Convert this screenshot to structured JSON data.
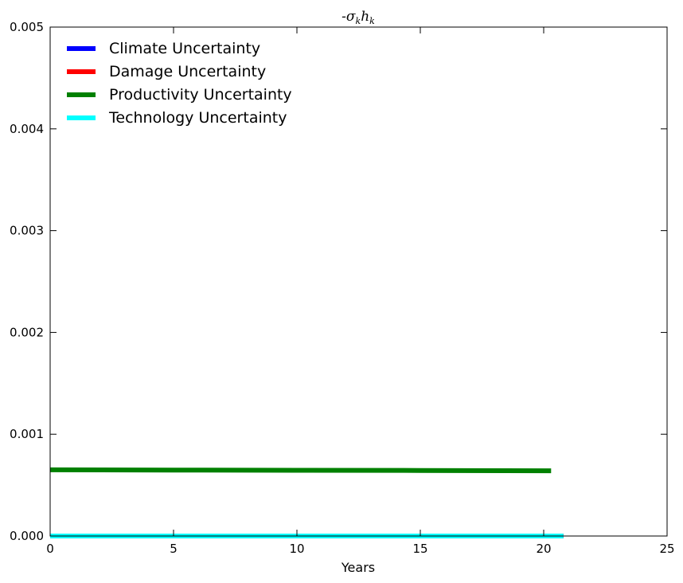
{
  "chart_data": {
    "type": "line",
    "title": "-σ_k h_k",
    "xlabel": "Years",
    "ylabel": "",
    "xlim": [
      0,
      25
    ],
    "ylim": [
      0,
      0.005
    ],
    "xticks": [
      0,
      5,
      10,
      15,
      20,
      25
    ],
    "xtick_labels": [
      "0",
      "5",
      "10",
      "15",
      "20",
      "25"
    ],
    "yticks": [
      0,
      0.001,
      0.002,
      0.003,
      0.004,
      0.005
    ],
    "ytick_labels": [
      "0.000",
      "0.001",
      "0.002",
      "0.003",
      "0.004",
      "0.005"
    ],
    "grid": false,
    "legend_position": "top-left",
    "series": [
      {
        "name": "Climate Uncertainty",
        "color": "#0000ff",
        "x": [
          0,
          20.8
        ],
        "y": [
          0.0,
          0.0
        ]
      },
      {
        "name": "Damage Uncertainty",
        "color": "#ff0000",
        "x": [
          0,
          20.8
        ],
        "y": [
          0.0,
          0.0
        ]
      },
      {
        "name": "Productivity Uncertainty",
        "color": "#008000",
        "x": [
          0,
          5,
          10,
          15,
          20.3
        ],
        "y": [
          0.00065,
          0.000648,
          0.000646,
          0.000644,
          0.000641
        ]
      },
      {
        "name": "Technology Uncertainty",
        "color": "#00ffff",
        "x": [
          0,
          20.8
        ],
        "y": [
          0.0,
          0.0
        ]
      }
    ]
  }
}
